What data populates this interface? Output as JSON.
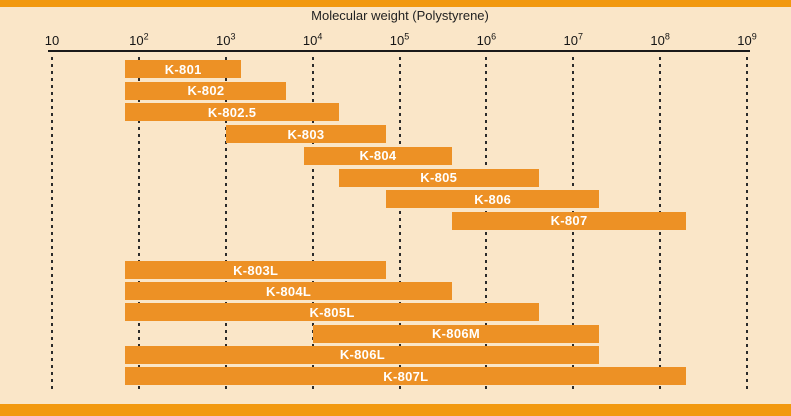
{
  "page": {
    "background_color": "#FAE6C8",
    "band_color": "#F2990F"
  },
  "chart_data": {
    "type": "bar",
    "orientation": "horizontal-range",
    "title": "Molecular weight (Polystyrene)",
    "x_axis": {
      "scale": "log",
      "min": 10,
      "max": 1000000000,
      "ticks": [
        {
          "base": "10",
          "exp": ""
        },
        {
          "base": "10",
          "exp": "2"
        },
        {
          "base": "10",
          "exp": "3"
        },
        {
          "base": "10",
          "exp": "4"
        },
        {
          "base": "10",
          "exp": "5"
        },
        {
          "base": "10",
          "exp": "6"
        },
        {
          "base": "10",
          "exp": "7"
        },
        {
          "base": "10",
          "exp": "8"
        },
        {
          "base": "10",
          "exp": "9"
        }
      ]
    },
    "grid": {
      "style": "dashed-vertical",
      "color": "#2b2b2b"
    },
    "bar_color": "#ED9125",
    "bar_label_color": "#FFFFFF",
    "groups": [
      {
        "name": "group-1",
        "rows": [
          {
            "label": "K-801",
            "mw_min": 70,
            "mw_max": 1500
          },
          {
            "label": "K-802",
            "mw_min": 70,
            "mw_max": 5000
          },
          {
            "label": "K-802.5",
            "mw_min": 70,
            "mw_max": 20000
          },
          {
            "label": "K-803",
            "mw_min": 1000,
            "mw_max": 70000
          },
          {
            "label": "K-804",
            "mw_min": 8000,
            "mw_max": 400000
          },
          {
            "label": "K-805",
            "mw_min": 20000,
            "mw_max": 4000000
          },
          {
            "label": "K-806",
            "mw_min": 70000,
            "mw_max": 20000000
          },
          {
            "label": "K-807",
            "mw_min": 400000,
            "mw_max": 200000000
          }
        ]
      },
      {
        "name": "group-2",
        "rows": [
          {
            "label": "K-803L",
            "mw_min": 70,
            "mw_max": 70000
          },
          {
            "label": "K-804L",
            "mw_min": 70,
            "mw_max": 400000
          },
          {
            "label": "K-805L",
            "mw_min": 70,
            "mw_max": 4000000
          },
          {
            "label": "K-806M",
            "mw_min": 10000,
            "mw_max": 20000000
          },
          {
            "label": "K-806L",
            "mw_min": 70,
            "mw_max": 20000000
          },
          {
            "label": "K-807L",
            "mw_min": 70,
            "mw_max": 200000000
          }
        ]
      }
    ]
  }
}
